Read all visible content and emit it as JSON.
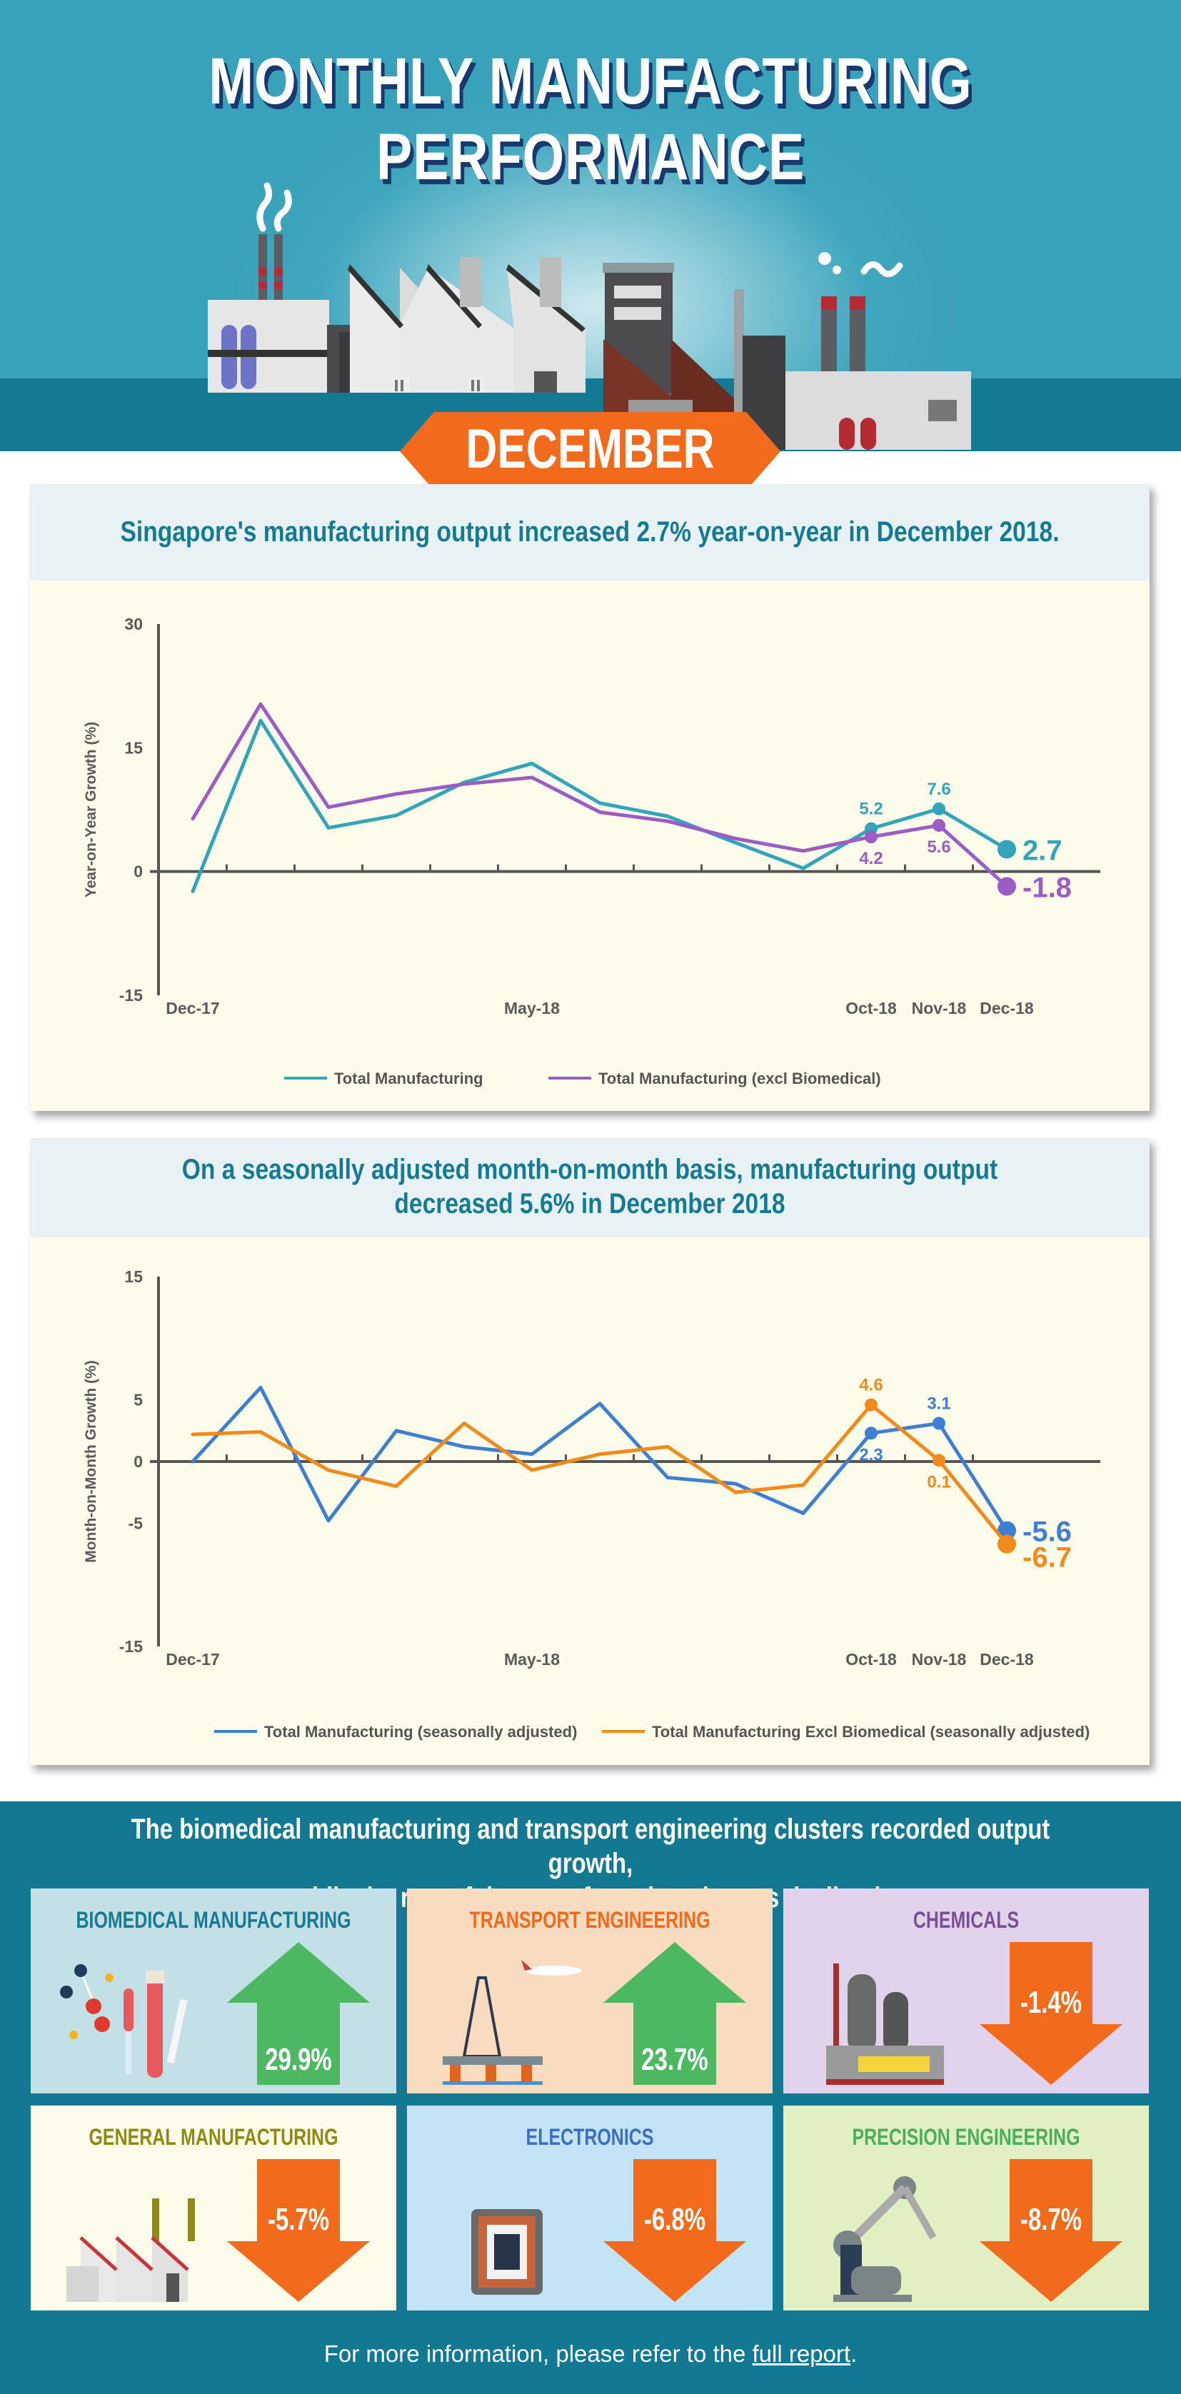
{
  "header": {
    "title_line1": "MONTHLY MANUFACTURING",
    "title_line2": "PERFORMANCE",
    "month": "DECEMBER 2018"
  },
  "colors": {
    "hero_teal": "#38a2ba",
    "band_teal": "#147a94",
    "banner_orange": "#f26b1d",
    "card_title": "#177a93",
    "total_mfg_yoy": "#33a4ba",
    "excl_bio_yoy": "#9b5cc4",
    "total_mfg_mom": "#3f7fcf",
    "excl_bio_mom": "#f28a1c",
    "up_arrow": "#4cb862",
    "down_arrow": "#f26b1d"
  },
  "chart_data": [
    {
      "type": "line",
      "title": "Singapore's manufacturing output increased 2.7% year-on-year in December 2018.",
      "xlabel": "",
      "ylabel": "Year-on-Year Growth (%)",
      "ylim": [
        -15,
        30
      ],
      "yticks": [
        "30",
        "15",
        "0",
        "-15"
      ],
      "ytick_values": [
        30,
        15,
        0,
        -15
      ],
      "categories": [
        "Dec-17",
        "Jan-18",
        "Feb-18",
        "Mar-18",
        "Apr-18",
        "May-18",
        "Jun-18",
        "Jul-18",
        "Aug-18",
        "Sep-18",
        "Oct-18",
        "Nov-18",
        "Dec-18"
      ],
      "xtick_labels": [
        {
          "index": 0,
          "label": "Dec-17"
        },
        {
          "index": 5,
          "label": "May-18"
        },
        {
          "index": 10,
          "label": "Oct-18"
        },
        {
          "index": 11,
          "label": "Nov-18"
        },
        {
          "index": 12,
          "label": "Dec-18"
        }
      ],
      "series": [
        {
          "name": "Total Manufacturing",
          "color": "#33a4ba",
          "values": [
            -2.4,
            18.3,
            5.3,
            6.8,
            10.8,
            13.1,
            8.3,
            6.7,
            3.5,
            0.4,
            5.2,
            7.6,
            2.7
          ],
          "labels": [
            {
              "index": 10,
              "text": "5.2",
              "pos": "above"
            },
            {
              "index": 11,
              "text": "7.6",
              "pos": "above"
            },
            {
              "index": 12,
              "text": "2.7",
              "pos": "right",
              "big": true
            }
          ]
        },
        {
          "name": "Total Manufacturing (excl Biomedical)",
          "color": "#9b5cc4",
          "values": [
            6.4,
            20.3,
            7.8,
            9.4,
            10.6,
            11.4,
            7.2,
            6.1,
            4.0,
            2.5,
            4.2,
            5.6,
            -1.8
          ],
          "labels": [
            {
              "index": 10,
              "text": "4.2",
              "pos": "below"
            },
            {
              "index": 11,
              "text": "5.6",
              "pos": "below"
            },
            {
              "index": 12,
              "text": "-1.8",
              "pos": "right",
              "big": true
            }
          ]
        }
      ],
      "grid": false,
      "legend": "bottom"
    },
    {
      "type": "line",
      "title": "On a seasonally adjusted month-on-month basis, manufacturing output decreased 5.6% in December 2018",
      "xlabel": "",
      "ylabel": "Month-on-Month Growth (%)",
      "ylim": [
        -15,
        15
      ],
      "yticks": [
        "15",
        "5",
        "0",
        "-5",
        "-15"
      ],
      "ytick_values": [
        15,
        5,
        0,
        -5,
        -15
      ],
      "categories": [
        "Dec-17",
        "Jan-18",
        "Feb-18",
        "Mar-18",
        "Apr-18",
        "May-18",
        "Jun-18",
        "Jul-18",
        "Aug-18",
        "Sep-18",
        "Oct-18",
        "Nov-18",
        "Dec-18"
      ],
      "xtick_labels": [
        {
          "index": 0,
          "label": "Dec-17"
        },
        {
          "index": 5,
          "label": "May-18"
        },
        {
          "index": 10,
          "label": "Oct-18"
        },
        {
          "index": 11,
          "label": "Nov-18"
        },
        {
          "index": 12,
          "label": "Dec-18"
        }
      ],
      "series": [
        {
          "name": "Total Manufacturing (seasonally adjusted)",
          "color": "#3f7fcf",
          "values": [
            0.0,
            6.0,
            -4.8,
            2.5,
            1.2,
            0.6,
            4.7,
            -1.3,
            -1.8,
            -4.2,
            2.3,
            3.1,
            -5.6
          ],
          "labels": [
            {
              "index": 10,
              "text": "2.3",
              "pos": "below"
            },
            {
              "index": 11,
              "text": "3.1",
              "pos": "above"
            },
            {
              "index": 12,
              "text": "-5.6",
              "pos": "right",
              "big": true
            }
          ]
        },
        {
          "name": "Total Manufacturing Excl Biomedical (seasonally adjusted)",
          "color": "#f28a1c",
          "values": [
            2.2,
            2.4,
            -0.7,
            -2.0,
            3.1,
            -0.7,
            0.6,
            1.2,
            -2.5,
            -1.9,
            4.6,
            0.1,
            -6.7
          ],
          "labels": [
            {
              "index": 10,
              "text": "4.6",
              "pos": "above"
            },
            {
              "index": 11,
              "text": "0.1",
              "pos": "below"
            },
            {
              "index": 12,
              "text": "-6.7",
              "pos": "right-below",
              "big": true
            }
          ]
        }
      ],
      "grid": false,
      "legend": "bottom"
    }
  ],
  "clusters": {
    "title_line1": "The biomedical manufacturing and transport engineering clusters recorded output growth,",
    "title_line2": "while the rest of the manufacturing clusters declined.",
    "items": [
      {
        "name": "BIOMEDICAL MANUFACTURING",
        "value": "29.9%",
        "direction": "up",
        "bg": "#c2e0e6",
        "title_color": "#177a93",
        "icon": "biomedical-lab-icon"
      },
      {
        "name": "TRANSPORT ENGINEERING",
        "value": "23.7%",
        "direction": "up",
        "bg": "#f9dbc0",
        "title_color": "#f26b1d",
        "icon": "oil-rig-airplane-icon"
      },
      {
        "name": "CHEMICALS",
        "value": "-1.4%",
        "direction": "down",
        "bg": "#e2d3ec",
        "title_color": "#7b4f97",
        "icon": "chemical-plant-icon"
      },
      {
        "name": "GENERAL MANUFACTURING",
        "value": "-5.7%",
        "direction": "down",
        "bg": "#fdfcea",
        "title_color": "#8e8a13",
        "icon": "factory-icon"
      },
      {
        "name": "ELECTRONICS",
        "value": "-6.8%",
        "direction": "down",
        "bg": "#c3e4f6",
        "title_color": "#3a6fc2",
        "icon": "microchip-icon"
      },
      {
        "name": "PRECISION ENGINEERING",
        "value": "-8.7%",
        "direction": "down",
        "bg": "#e2efc3",
        "title_color": "#4cae5a",
        "icon": "robotic-arm-icon"
      }
    ]
  },
  "footer": {
    "text_before": "For more information, please refer to the ",
    "link_text": "full report",
    "text_after": "."
  }
}
